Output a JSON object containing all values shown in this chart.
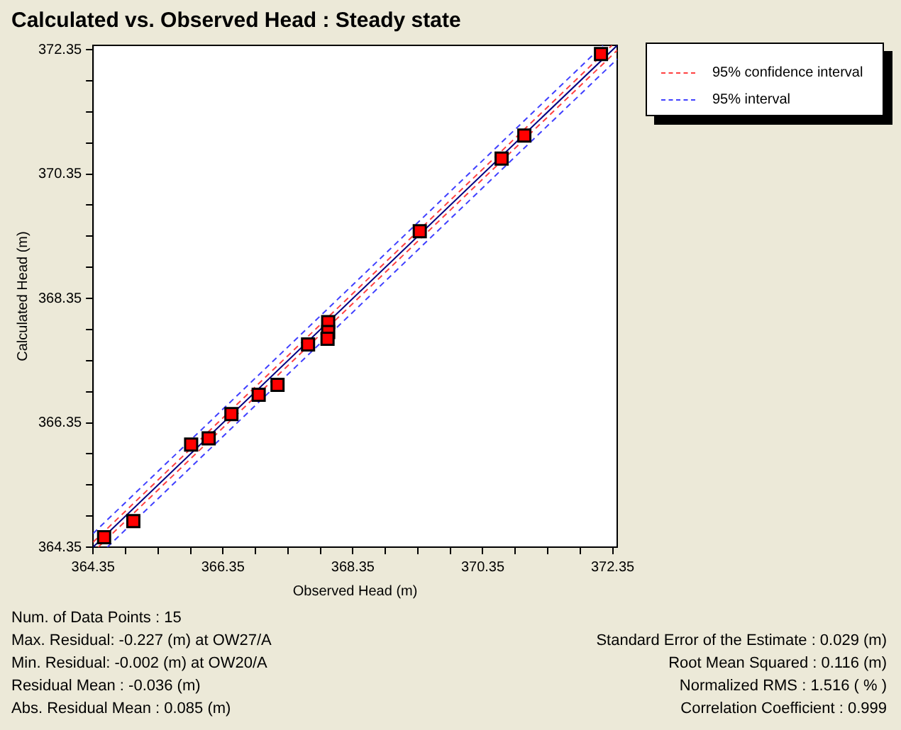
{
  "chart_data": {
    "type": "scatter",
    "title": "Calculated vs. Observed Head : Steady state",
    "xlabel": "Observed Head (m)",
    "ylabel": "Calculated Head (m)",
    "xlim": [
      364.35,
      372.42
    ],
    "ylim": [
      364.35,
      372.42
    ],
    "xticks": [
      364.35,
      {
        "value": 364.85,
        "label": null
      },
      {
        "value": 365.35,
        "label": null
      },
      {
        "value": 365.85,
        "label": null
      },
      366.35,
      {
        "value": 366.85,
        "label": null
      },
      {
        "value": 367.35,
        "label": null
      },
      {
        "value": 367.85,
        "label": null
      },
      368.35,
      {
        "value": 368.85,
        "label": null
      },
      {
        "value": 369.35,
        "label": null
      },
      {
        "value": 369.85,
        "label": null
      },
      370.35,
      {
        "value": 370.85,
        "label": null
      },
      {
        "value": 371.35,
        "label": null
      },
      {
        "value": 371.85,
        "label": null
      },
      372.35
    ],
    "yticks": [
      364.35,
      {
        "value": 364.85,
        "label": null
      },
      {
        "value": 365.35,
        "label": null
      },
      {
        "value": 365.85,
        "label": null
      },
      366.35,
      {
        "value": 366.85,
        "label": null
      },
      {
        "value": 367.35,
        "label": null
      },
      {
        "value": 367.85,
        "label": null
      },
      368.35,
      {
        "value": 368.85,
        "label": null
      },
      {
        "value": 369.35,
        "label": null
      },
      {
        "value": 369.85,
        "label": null
      },
      370.35,
      {
        "value": 370.85,
        "label": null
      },
      {
        "value": 371.35,
        "label": null
      },
      {
        "value": 371.85,
        "label": null
      },
      372.35
    ],
    "marker": "square",
    "legend": "top right",
    "series": [
      {
        "type": "line",
        "color": "#000080",
        "line_style": "solid",
        "marker": "none",
        "x": [
          364.35,
          372.42
        ],
        "values": [
          364.35,
          372.42
        ]
      },
      {
        "type": "line",
        "name": "95% confidence interval",
        "color": "#ff4040",
        "line_style": "dashed",
        "marker": "none",
        "x": [
          364.35,
          372.34
        ],
        "values": [
          364.43,
          372.42
        ]
      },
      {
        "type": "line",
        "color": "#ff4040",
        "line_style": "dashed",
        "marker": "none",
        "x": [
          364.43,
          372.42
        ],
        "values": [
          364.35,
          372.34
        ]
      },
      {
        "type": "line",
        "name": "95% interval",
        "color": "#4040ff",
        "line_style": "dashed",
        "marker": "none",
        "x": [
          364.35,
          372.2
        ],
        "values": [
          364.57,
          372.42
        ]
      },
      {
        "type": "line",
        "color": "#4040ff",
        "line_style": "dashed",
        "marker": "none",
        "x": [
          364.57,
          372.42
        ],
        "values": [
          364.35,
          372.2
        ]
      },
      {
        "type": "scatter",
        "color": "#ff0000",
        "x": [
          364.52,
          364.97,
          365.86,
          366.13,
          366.48,
          366.9,
          367.19,
          367.66,
          367.97,
          367.97,
          367.96,
          369.38,
          370.64,
          370.99,
          372.17
        ],
        "values": [
          364.51,
          364.77,
          366.0,
          366.1,
          366.49,
          366.8,
          366.96,
          367.61,
          367.97,
          367.81,
          367.7,
          369.43,
          370.6,
          370.97,
          372.28
        ]
      }
    ],
    "annotations": [
      "Num. of Data Points : 15",
      "Max. Residual: -0.227 (m) at OW27/A",
      "Min. Residual: -0.002 (m) at OW20/A",
      "Residual Mean : -0.036 (m)",
      "Abs. Residual Mean : 0.085 (m)",
      "Standard Error of the Estimate : 0.029 (m)",
      "Root Mean Squared : 0.116 (m)",
      "Normalized RMS : 1.516 ( % )",
      "Correlation Coefficient : 0.999"
    ]
  }
}
